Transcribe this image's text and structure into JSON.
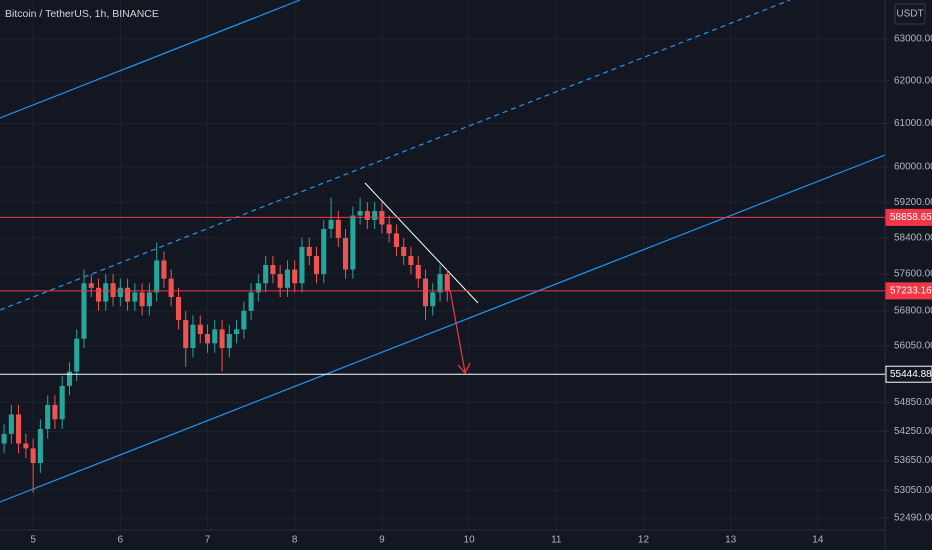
{
  "chart_data": {
    "type": "candlestick",
    "title": "Bitcoin / TetherUS, 1h, BINANCE",
    "currency": "USDT",
    "log_scale": true,
    "grid": true,
    "up_color": "#26a69a",
    "down_color": "#ef5350",
    "xlim": [
      4.62,
      14.77
    ],
    "xticks": [
      5,
      6,
      7,
      8,
      9,
      10,
      11,
      12,
      13,
      14
    ],
    "ylim": [
      52250,
      63940
    ],
    "yticks": [
      {
        "value": 63000,
        "label": "63000.00"
      },
      {
        "value": 62000,
        "label": "62000.00"
      },
      {
        "value": 61000,
        "label": "61000.00"
      },
      {
        "value": 60000,
        "label": "60000.00"
      },
      {
        "value": 59200,
        "label": "59200.00"
      },
      {
        "value": 58400,
        "label": "58400.00"
      },
      {
        "value": 57600,
        "label": "57600.00"
      },
      {
        "value": 56800,
        "label": "56800.00"
      },
      {
        "value": 56050,
        "label": "56050.00"
      },
      {
        "value": 54850,
        "label": "54850.00"
      },
      {
        "value": 54250,
        "label": "54250.00"
      },
      {
        "value": 53650,
        "label": "53650.00"
      },
      {
        "value": 53050,
        "label": "53050.00"
      },
      {
        "value": 52490,
        "label": "52490.00"
      }
    ],
    "price_lines": [
      {
        "value": 58858.65,
        "color": "#f23645"
      },
      {
        "value": 57233.16,
        "color": "#f23645"
      },
      {
        "value": 55444.88,
        "color": "#ffffff"
      }
    ],
    "x": [
      4.667,
      4.75,
      4.833,
      4.917,
      5,
      5.083,
      5.167,
      5.25,
      5.333,
      5.417,
      5.5,
      5.583,
      5.667,
      5.75,
      5.833,
      5.917,
      6,
      6.083,
      6.167,
      6.25,
      6.333,
      6.417,
      6.5,
      6.583,
      6.667,
      6.75,
      6.833,
      6.917,
      7,
      7.083,
      7.167,
      7.25,
      7.333,
      7.417,
      7.5,
      7.583,
      7.667,
      7.75,
      7.833,
      7.917,
      8,
      8.083,
      8.167,
      8.25,
      8.333,
      8.417,
      8.5,
      8.583,
      8.667,
      8.75,
      8.833,
      8.917,
      9,
      9.083,
      9.167,
      9.25,
      9.333,
      9.417,
      9.5,
      9.583,
      9.667,
      9.75
    ],
    "open": [
      54000,
      54200,
      54600,
      54000,
      53900,
      53600,
      54300,
      54800,
      54500,
      55200,
      55500,
      56200,
      57400,
      57300,
      57000,
      57400,
      57100,
      57300,
      57000,
      57200,
      56900,
      57200,
      57900,
      57500,
      57100,
      56600,
      56000,
      56500,
      56300,
      56100,
      56400,
      56000,
      56300,
      56400,
      56800,
      57200,
      57400,
      57800,
      57600,
      57300,
      57700,
      57400,
      58200,
      58000,
      57600,
      58600,
      58800,
      58400,
      57700,
      58900,
      59000,
      58800,
      59000,
      58700,
      58500,
      58200,
      58000,
      57800,
      57500,
      56900,
      57200,
      57600
    ],
    "high": [
      54400,
      54800,
      54800,
      54200,
      54100,
      54500,
      55000,
      55000,
      55400,
      55700,
      56400,
      57700,
      57600,
      57500,
      57600,
      57600,
      57500,
      57500,
      57400,
      57400,
      57400,
      58300,
      58100,
      57700,
      57300,
      56800,
      56700,
      56700,
      56500,
      56600,
      56600,
      56500,
      56600,
      57000,
      57400,
      57600,
      58000,
      58000,
      57800,
      57900,
      57900,
      58400,
      58400,
      58200,
      58800,
      59300,
      59000,
      58600,
      59100,
      59300,
      59200,
      59200,
      59200,
      58900,
      58700,
      58400,
      58200,
      58000,
      57700,
      57400,
      57800,
      57700
    ],
    "low": [
      53800,
      54000,
      53800,
      53700,
      53000,
      53400,
      54100,
      54300,
      54300,
      55000,
      55300,
      56000,
      57100,
      56800,
      56800,
      56900,
      56900,
      56800,
      56800,
      56700,
      56700,
      57000,
      57300,
      56900,
      56400,
      55600,
      55800,
      56100,
      55900,
      55900,
      55500,
      55800,
      56100,
      56200,
      56600,
      57000,
      57200,
      57400,
      57100,
      57100,
      57200,
      57200,
      57800,
      57400,
      57400,
      58400,
      58200,
      57500,
      57500,
      58700,
      58600,
      58600,
      58500,
      58300,
      58000,
      57800,
      57600,
      57300,
      56600,
      56700,
      57000,
      57000
    ],
    "close": [
      54200,
      54600,
      54000,
      53900,
      53600,
      54300,
      54800,
      54500,
      55200,
      55500,
      56200,
      57400,
      57300,
      57000,
      57400,
      57100,
      57300,
      57000,
      57200,
      56900,
      57200,
      57900,
      57500,
      57100,
      56600,
      56000,
      56500,
      56300,
      56100,
      56400,
      56000,
      56300,
      56400,
      56800,
      57200,
      57400,
      57800,
      57600,
      57300,
      57700,
      57400,
      58200,
      58000,
      57600,
      58600,
      58800,
      58400,
      57700,
      58900,
      59000,
      58800,
      59000,
      58700,
      58500,
      58200,
      58000,
      57800,
      57500,
      56900,
      57200,
      57600,
      57233.16
    ]
  }
}
